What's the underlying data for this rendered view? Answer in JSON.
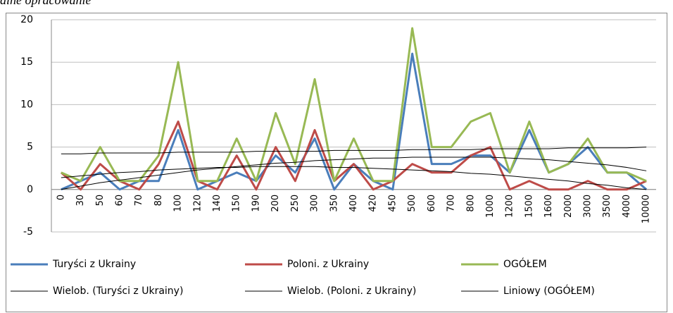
{
  "chart_data": {
    "type": "line",
    "subtitle": "alne opracowanie",
    "categories": [
      "0",
      "30",
      "50",
      "60",
      "70",
      "80",
      "100",
      "120",
      "140",
      "150",
      "190",
      "200",
      "250",
      "300",
      "350",
      "400",
      "420",
      "450",
      "500",
      "600",
      "700",
      "800",
      "1000",
      "1200",
      "1500",
      "1600",
      "2000",
      "3000",
      "3500",
      "4000",
      "10000"
    ],
    "ylim": [
      -5,
      20
    ],
    "yticks": [
      -5,
      0,
      5,
      10,
      15,
      20
    ],
    "grid": true,
    "series": [
      {
        "name": "Turyści  z Ukrainy",
        "color": "#4a7ebb",
        "line_width": 3,
        "values": [
          0,
          1,
          2,
          0,
          1,
          1,
          7,
          0,
          1,
          2,
          1,
          4,
          2,
          6,
          0,
          3,
          1,
          0,
          16,
          3,
          3,
          4,
          4,
          2,
          7,
          2,
          3,
          5,
          2,
          2,
          0
        ]
      },
      {
        "name": "Poloni. z Ukrainy",
        "color": "#be4b48",
        "line_width": 3,
        "values": [
          2,
          0,
          3,
          1,
          0,
          3,
          8,
          1,
          0,
          4,
          0,
          5,
          1,
          7,
          1,
          3,
          0,
          1,
          3,
          2,
          2,
          4,
          5,
          0,
          1,
          0,
          0,
          1,
          0,
          0,
          1
        ]
      },
      {
        "name": "OGÓŁEM",
        "color": "#98b954",
        "line_width": 3,
        "values": [
          2,
          1,
          5,
          1,
          1,
          4,
          15,
          1,
          1,
          6,
          1,
          9,
          3,
          13,
          1,
          6,
          1,
          1,
          19,
          5,
          5,
          8,
          9,
          2,
          8,
          2,
          3,
          6,
          2,
          2,
          1
        ]
      },
      {
        "name": "Wielob. (Turyści  z Ukrainy)",
        "color": "#000000",
        "line_width": 1,
        "values": [
          0,
          0.4,
          0.8,
          1.1,
          1.4,
          1.7,
          2.0,
          2.3,
          2.5,
          2.7,
          2.9,
          3.1,
          3.2,
          3.4,
          3.5,
          3.6,
          3.7,
          3.7,
          3.8,
          3.8,
          3.8,
          3.8,
          3.8,
          3.7,
          3.6,
          3.5,
          3.3,
          3.1,
          2.9,
          2.6,
          2.2
        ]
      },
      {
        "name": "Wielob. (Poloni. z Ukrainy)",
        "color": "#000000",
        "line_width": 1,
        "values": [
          1.4,
          1.6,
          1.8,
          2.0,
          2.1,
          2.3,
          2.4,
          2.5,
          2.6,
          2.6,
          2.7,
          2.7,
          2.7,
          2.7,
          2.6,
          2.6,
          2.5,
          2.4,
          2.3,
          2.2,
          2.1,
          1.9,
          1.8,
          1.6,
          1.4,
          1.2,
          1.0,
          0.7,
          0.5,
          0.2,
          0
        ]
      },
      {
        "name": "Liniowy (OGÓŁEM)",
        "color": "#000000",
        "line_width": 1,
        "values": [
          4.2,
          4.2,
          4.3,
          4.3,
          4.3,
          4.3,
          4.4,
          4.4,
          4.4,
          4.4,
          4.5,
          4.5,
          4.5,
          4.5,
          4.6,
          4.6,
          4.6,
          4.6,
          4.7,
          4.7,
          4.7,
          4.7,
          4.8,
          4.8,
          4.8,
          4.8,
          4.9,
          4.9,
          4.9,
          4.9,
          5.0
        ]
      }
    ]
  }
}
